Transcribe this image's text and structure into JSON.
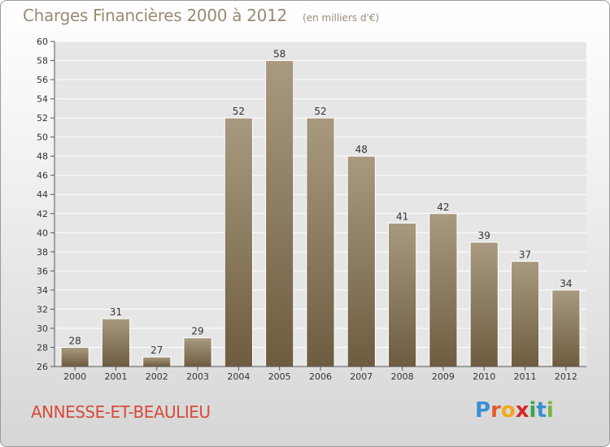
{
  "header": {
    "title": "Charges Financières 2000 à 2012",
    "unit_note": "(en milliers d'€)"
  },
  "footer": {
    "commune": "ANNESSE-ET-BEAULIEU",
    "brand_letters": [
      "P",
      "r",
      "o",
      "x",
      "i",
      "t",
      "i"
    ],
    "brand_colors": [
      "#3a8fd1",
      "#e8592c",
      "#f2a71b",
      "#d9262c",
      "#3aa54a",
      "#3a8fd1",
      "#7ab33c"
    ]
  },
  "colors": {
    "bar_top": "#a89a80",
    "bar_bottom": "#6e5c40",
    "bar_edge": "#ffffff",
    "plot_bg": "#e6e6e6",
    "axis": "#555555",
    "grid": "#ffffff"
  },
  "chart_data": {
    "type": "bar",
    "title": "Charges Financières 2000 à 2012",
    "subtitle": "(en milliers d'€)",
    "xlabel": "",
    "ylabel": "",
    "categories": [
      "2000",
      "2001",
      "2002",
      "2003",
      "2004",
      "2005",
      "2006",
      "2007",
      "2008",
      "2009",
      "2010",
      "2011",
      "2012"
    ],
    "values": [
      28,
      31,
      27,
      29,
      52,
      58,
      52,
      48,
      41,
      42,
      39,
      37,
      34
    ],
    "ylim": [
      26,
      60
    ],
    "ytick_step": 2,
    "grid": true,
    "legend": "none"
  }
}
